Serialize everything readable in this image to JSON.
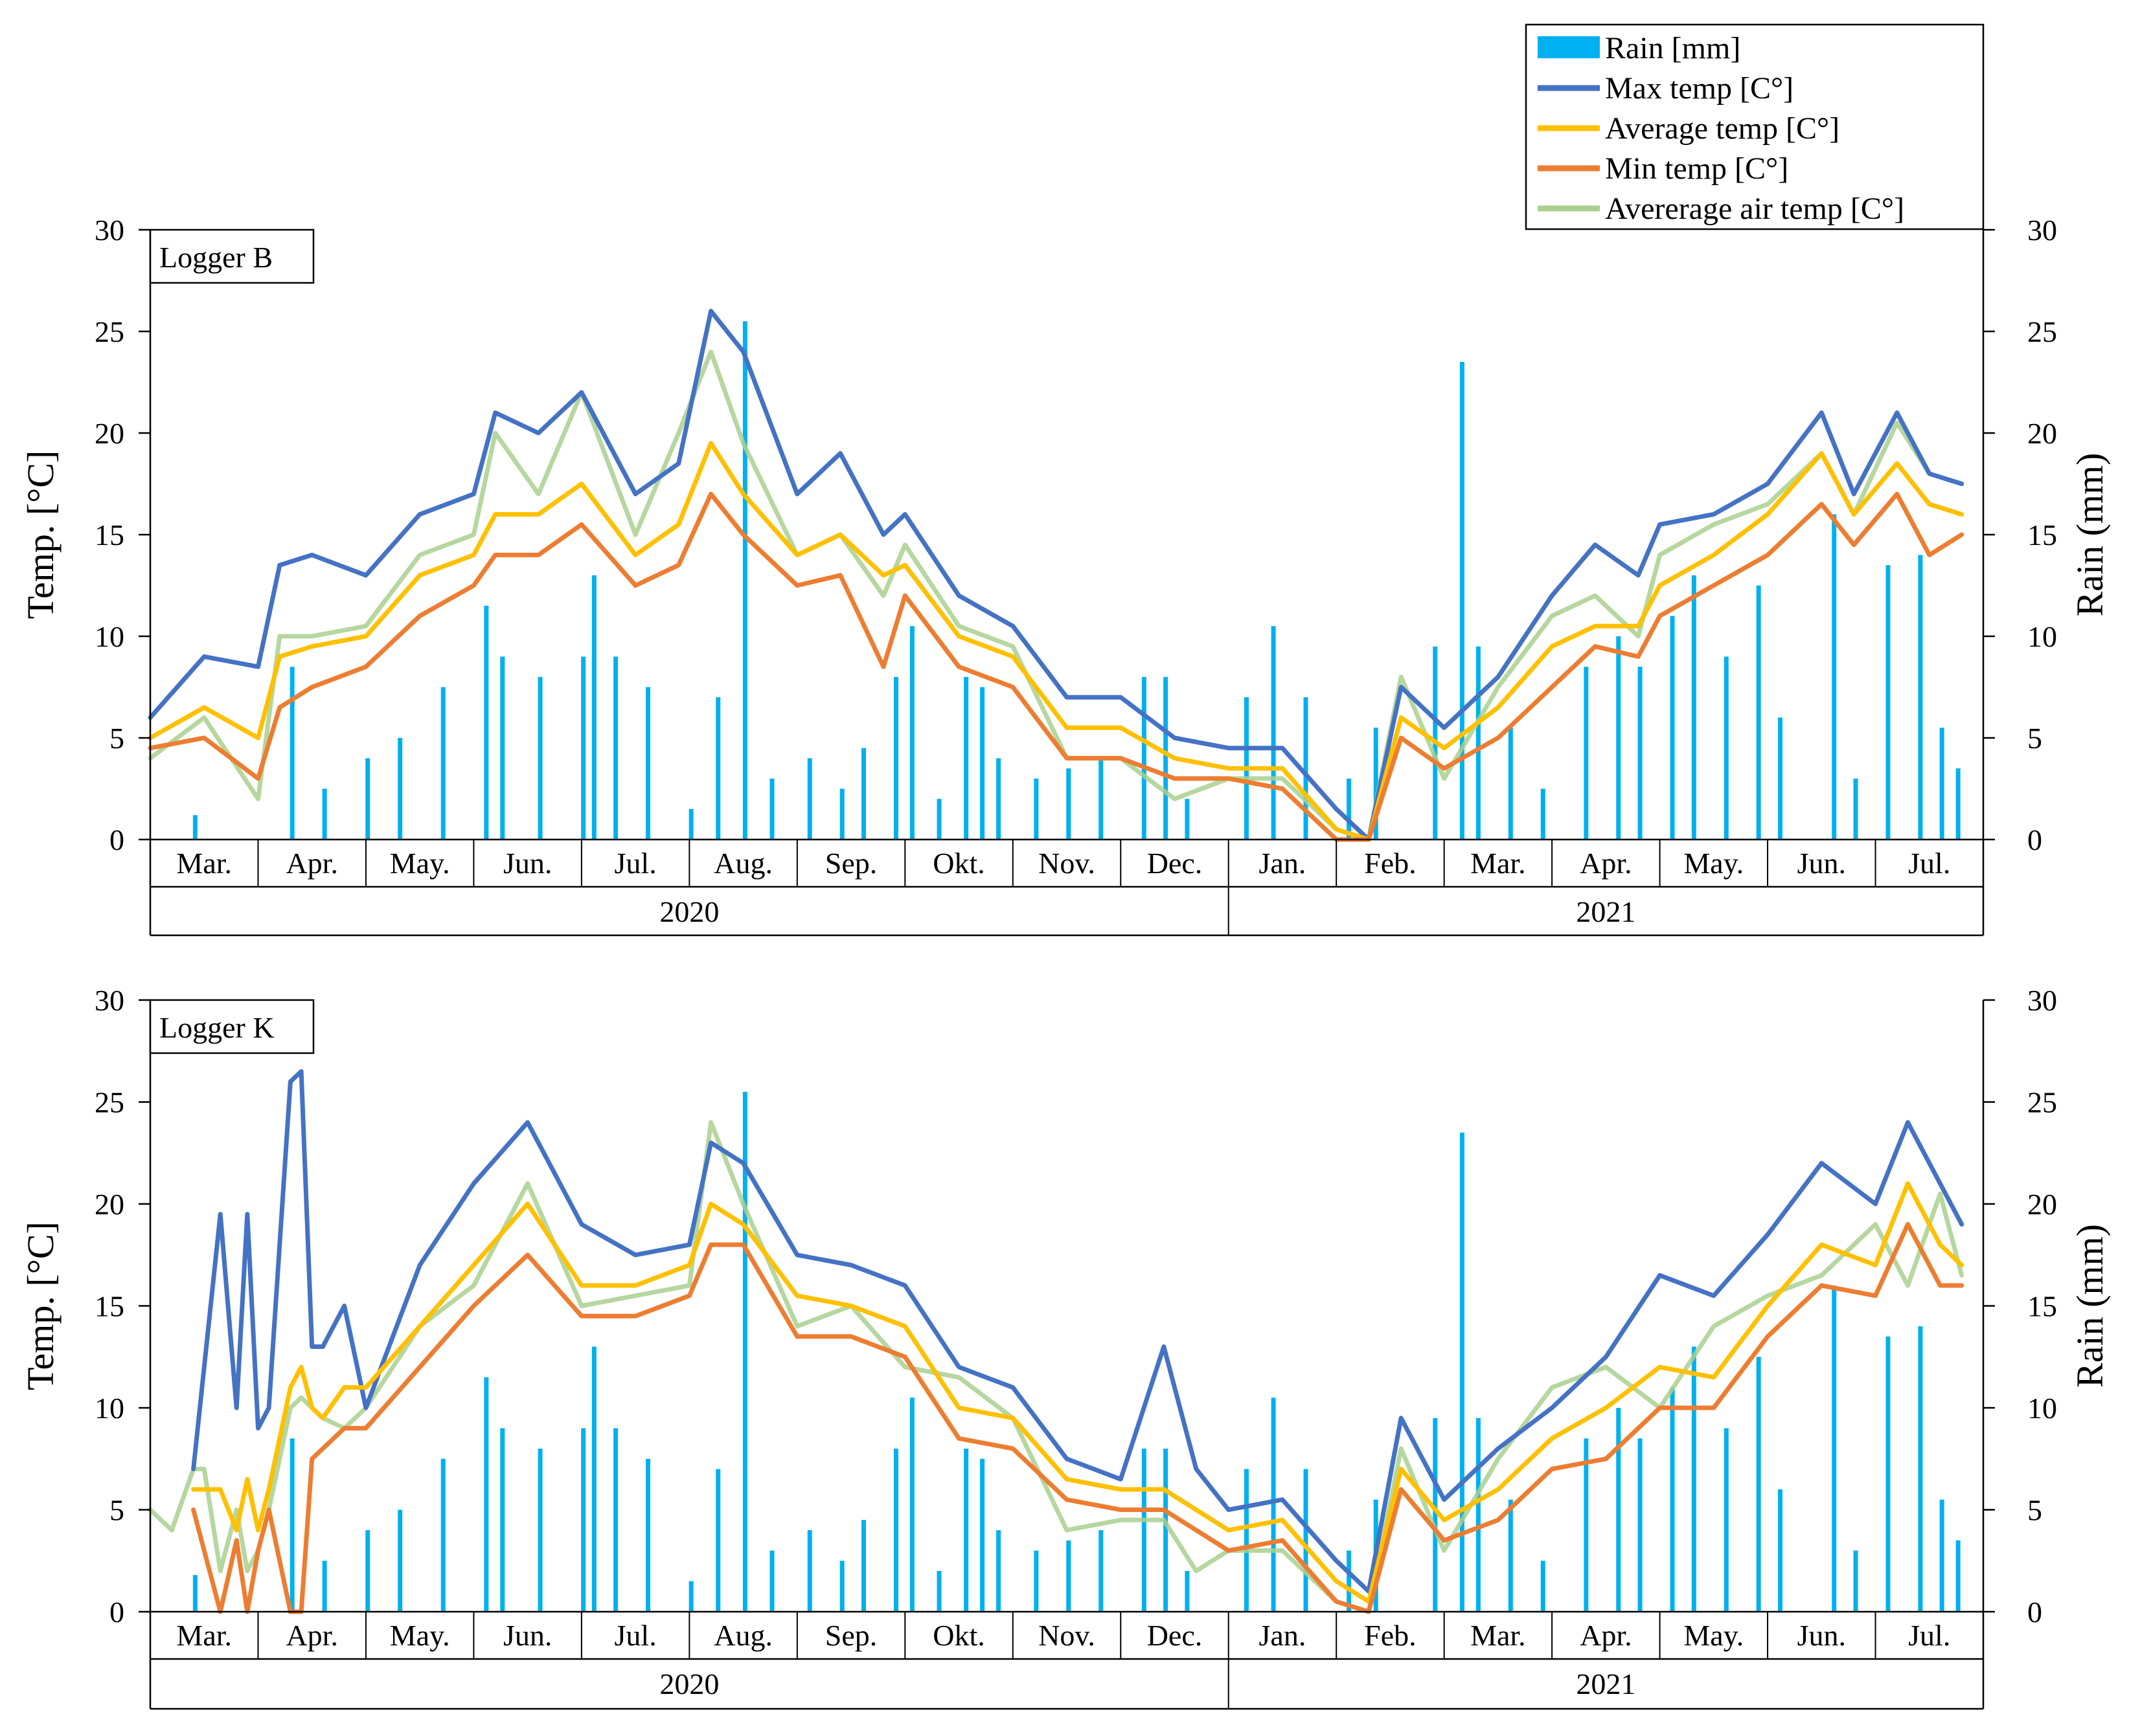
{
  "legend": {
    "items": [
      {
        "label": "Rain [mm]",
        "kind": "bar",
        "color": "#00B0F0"
      },
      {
        "label": "Max temp [C°]",
        "kind": "line",
        "color": "#4472C4"
      },
      {
        "label": "Average temp [C°]",
        "kind": "line",
        "color": "#FFC000"
      },
      {
        "label": "Min temp [C°]",
        "kind": "line",
        "color": "#ED7D31"
      },
      {
        "label": "Avererage air temp [C°]",
        "kind": "line",
        "color": "#A9D08E"
      }
    ]
  },
  "chart_data": [
    {
      "type": "line",
      "title": "Logger B",
      "ylabel": "Temp. [°C]",
      "y2label": "Rain (mm)",
      "ylim": [
        0,
        30
      ],
      "y2lim": [
        0,
        30
      ],
      "yticks": [
        0,
        5,
        10,
        15,
        20,
        25,
        30
      ],
      "months": [
        "Mar.",
        "Apr.",
        "May.",
        "Jun.",
        "Jul.",
        "Aug.",
        "Sep.",
        "Okt.",
        "Nov.",
        "Dec.",
        "Jan.",
        "Feb.",
        "Mar.",
        "Apr.",
        "May.",
        "Jun.",
        "Jul."
      ],
      "years": [
        {
          "label": "2020",
          "months": 10
        },
        {
          "label": "2021",
          "months": 7
        }
      ],
      "series": [
        {
          "name": "Max temp [C°]",
          "color": "#4472C4",
          "x": [
            0,
            0.5,
            1,
            1.2,
            1.5,
            2,
            2.5,
            3,
            3.2,
            3.6,
            4,
            4.5,
            4.9,
            5.2,
            5.5,
            6,
            6.4,
            6.8,
            7,
            7.5,
            8,
            8.5,
            9,
            9.5,
            10,
            10.5,
            11,
            11.3,
            11.6,
            12,
            12.5,
            13,
            13.4,
            13.8,
            14,
            14.5,
            15,
            15.5,
            15.8,
            16.2,
            16.5,
            16.8
          ],
          "values": [
            6,
            9,
            8.5,
            13.5,
            14,
            13,
            16,
            17,
            21,
            20,
            22,
            17,
            18.5,
            26,
            24,
            17,
            19,
            15,
            16,
            12,
            10.5,
            7,
            7,
            5,
            4.5,
            4.5,
            1.5,
            0,
            7.5,
            5.5,
            8,
            12,
            14.5,
            13,
            15.5,
            16,
            17.5,
            21,
            17,
            21,
            18,
            17.5
          ]
        },
        {
          "name": "Average temp [C°]",
          "color": "#FFC000",
          "x": [
            0,
            0.5,
            1,
            1.2,
            1.5,
            2,
            2.5,
            3,
            3.2,
            3.6,
            4,
            4.5,
            4.9,
            5.2,
            5.5,
            6,
            6.4,
            6.8,
            7,
            7.5,
            8,
            8.5,
            9,
            9.5,
            10,
            10.5,
            11,
            11.3,
            11.6,
            12,
            12.5,
            13,
            13.4,
            13.8,
            14,
            14.5,
            15,
            15.5,
            15.8,
            16.2,
            16.5,
            16.8
          ],
          "values": [
            5,
            6.5,
            5,
            9,
            9.5,
            10,
            13,
            14,
            16,
            16,
            17.5,
            14,
            15.5,
            19.5,
            17,
            14,
            15,
            13,
            13.5,
            10,
            9,
            5.5,
            5.5,
            4,
            3.5,
            3.5,
            0.5,
            0,
            6,
            4.5,
            6.5,
            9.5,
            10.5,
            10.5,
            12.5,
            14,
            16,
            19,
            16,
            18.5,
            16.5,
            16
          ]
        },
        {
          "name": "Min temp [C°]",
          "color": "#ED7D31",
          "x": [
            0,
            0.5,
            1,
            1.2,
            1.5,
            2,
            2.5,
            3,
            3.2,
            3.6,
            4,
            4.5,
            4.9,
            5.2,
            5.5,
            6,
            6.4,
            6.8,
            7,
            7.5,
            8,
            8.5,
            9,
            9.5,
            10,
            10.5,
            11,
            11.3,
            11.6,
            12,
            12.5,
            13,
            13.4,
            13.8,
            14,
            14.5,
            15,
            15.5,
            15.8,
            16.2,
            16.5,
            16.8
          ],
          "values": [
            4.5,
            5,
            3,
            6.5,
            7.5,
            8.5,
            11,
            12.5,
            14,
            14,
            15.5,
            12.5,
            13.5,
            17,
            15,
            12.5,
            13,
            8.5,
            12,
            8.5,
            7.5,
            4,
            4,
            3,
            3,
            2.5,
            0,
            0,
            5,
            3.5,
            5,
            7.5,
            9.5,
            9,
            11,
            12.5,
            14,
            16.5,
            14.5,
            17,
            14,
            15
          ]
        },
        {
          "name": "Avererage air temp [C°]",
          "color": "#A9D08E",
          "x": [
            0,
            0.5,
            1,
            1.2,
            1.5,
            2,
            2.5,
            3,
            3.2,
            3.6,
            4,
            4.5,
            4.9,
            5.2,
            5.5,
            6,
            6.4,
            6.8,
            7,
            7.5,
            8,
            8.5,
            9,
            9.5,
            10,
            10.5,
            11,
            11.3,
            11.6,
            12,
            12.5,
            13,
            13.4,
            13.8,
            14,
            14.5,
            15,
            15.5,
            15.8,
            16.2,
            16.5,
            16.8
          ],
          "values": [
            4,
            6,
            2,
            10,
            10,
            10.5,
            14,
            15,
            20,
            17,
            22,
            15,
            20,
            24,
            19.5,
            14,
            15,
            12,
            14.5,
            10.5,
            9.5,
            4,
            4,
            2,
            3,
            3,
            0.5,
            0,
            8,
            3,
            7.5,
            11,
            12,
            10,
            14,
            15.5,
            16.5,
            19,
            16,
            20.5,
            18,
            17.5
          ]
        }
      ],
      "rain": {
        "x": [
          0.4,
          1.3,
          1.6,
          2,
          2.3,
          2.7,
          3.1,
          3.25,
          3.6,
          4,
          4.1,
          4.3,
          4.6,
          5,
          5.25,
          5.5,
          5.75,
          6.1,
          6.4,
          6.6,
          6.9,
          7.05,
          7.3,
          7.55,
          7.7,
          7.85,
          8.2,
          8.5,
          8.8,
          9.2,
          9.4,
          9.6,
          10.15,
          10.4,
          10.7,
          11.1,
          11.35,
          11.9,
          12.15,
          12.3,
          12.6,
          12.9,
          13.3,
          13.6,
          13.8,
          14.1,
          14.3,
          14.6,
          14.9,
          15.1,
          15.6,
          15.8,
          16.1,
          16.4,
          16.6,
          16.75
        ],
        "values": [
          1.2,
          8.5,
          2.5,
          4,
          5,
          7.5,
          11.5,
          9,
          8,
          9,
          13,
          9,
          7.5,
          1.5,
          7,
          25.5,
          3,
          4,
          2.5,
          4.5,
          8,
          10.5,
          2,
          8,
          7.5,
          4,
          3,
          3.5,
          4,
          8,
          8,
          2,
          7,
          10.5,
          7,
          3,
          5.5,
          9.5,
          23.5,
          9.5,
          5.5,
          2.5,
          8.5,
          10,
          8.5,
          11,
          13,
          9,
          12.5,
          6,
          16,
          3,
          13.5,
          14,
          5.5,
          3.5
        ]
      }
    },
    {
      "type": "line",
      "title": "Logger K",
      "ylabel": "Temp. [°C]",
      "y2label": "Rain (mm)",
      "ylim": [
        0,
        30
      ],
      "y2lim": [
        0,
        30
      ],
      "yticks": [
        0,
        5,
        10,
        15,
        20,
        25,
        30
      ],
      "months": [
        "Mar.",
        "Apr.",
        "May.",
        "Jun.",
        "Jul.",
        "Aug.",
        "Sep.",
        "Okt.",
        "Nov.",
        "Dec.",
        "Jan.",
        "Feb.",
        "Mar.",
        "Apr.",
        "May.",
        "Jun.",
        "Jul."
      ],
      "years": [
        {
          "label": "2020",
          "months": 10
        },
        {
          "label": "2021",
          "months": 7
        }
      ],
      "series": [
        {
          "name": "Max temp [C°]",
          "color": "#4472C4",
          "x": [
            0.4,
            0.65,
            0.8,
            0.9,
            1,
            1.1,
            1.3,
            1.4,
            1.5,
            1.6,
            1.8,
            2,
            2.5,
            3,
            3.5,
            4,
            4.5,
            5,
            5.2,
            5.5,
            6,
            6.5,
            7,
            7.5,
            8,
            8.5,
            9,
            9.4,
            9.7,
            10,
            10.5,
            11,
            11.3,
            11.6,
            12,
            12.5,
            13,
            13.5,
            14,
            14.5,
            15,
            15.5,
            16,
            16.3,
            16.6,
            16.8
          ],
          "values": [
            7,
            19.5,
            10,
            19.5,
            9,
            10,
            26,
            26.5,
            13,
            13,
            15,
            10,
            17,
            21,
            24,
            19,
            17.5,
            18,
            23,
            22,
            17.5,
            17,
            16,
            12,
            11,
            7.5,
            6.5,
            13,
            7,
            5,
            5.5,
            2.5,
            1,
            9.5,
            5.5,
            8,
            10,
            12.5,
            16.5,
            15.5,
            18.5,
            22,
            20,
            24,
            21,
            19
          ]
        },
        {
          "name": "Average temp [C°]",
          "color": "#FFC000",
          "x": [
            0.4,
            0.65,
            0.8,
            0.9,
            1,
            1.1,
            1.3,
            1.4,
            1.5,
            1.6,
            1.8,
            2,
            2.5,
            3,
            3.5,
            4,
            4.5,
            5,
            5.2,
            5.5,
            6,
            6.5,
            7,
            7.5,
            8,
            8.5,
            9,
            9.4,
            9.7,
            10,
            10.5,
            11,
            11.3,
            11.6,
            12,
            12.5,
            13,
            13.5,
            14,
            14.5,
            15,
            15.5,
            16,
            16.3,
            16.6,
            16.8
          ],
          "values": [
            6,
            6,
            4,
            6.5,
            4,
            6,
            11,
            12,
            10,
            9.5,
            11,
            11,
            14,
            17,
            20,
            16,
            16,
            17,
            20,
            19,
            15.5,
            15,
            14,
            10,
            9.5,
            6.5,
            6,
            6,
            5,
            4,
            4.5,
            1.5,
            0.5,
            7,
            4.5,
            6,
            8.5,
            10,
            12,
            11.5,
            15,
            18,
            17,
            21,
            18,
            17
          ]
        },
        {
          "name": "Min temp [C°]",
          "color": "#ED7D31",
          "x": [
            0.4,
            0.65,
            0.8,
            0.9,
            1,
            1.1,
            1.3,
            1.4,
            1.5,
            1.6,
            1.8,
            2,
            2.5,
            3,
            3.5,
            4,
            4.5,
            5,
            5.2,
            5.5,
            6,
            6.5,
            7,
            7.5,
            8,
            8.5,
            9,
            9.4,
            9.7,
            10,
            10.5,
            11,
            11.3,
            11.6,
            12,
            12.5,
            13,
            13.5,
            14,
            14.5,
            15,
            15.5,
            16,
            16.3,
            16.6,
            16.8
          ],
          "values": [
            5,
            0,
            3.5,
            0,
            3,
            5,
            0,
            0,
            7.5,
            8,
            9,
            9,
            12,
            15,
            17.5,
            14.5,
            14.5,
            15.5,
            18,
            18,
            13.5,
            13.5,
            12.5,
            8.5,
            8,
            5.5,
            5,
            5,
            4,
            3,
            3.5,
            0.5,
            0,
            6,
            3.5,
            4.5,
            7,
            7.5,
            10,
            10,
            13.5,
            16,
            15.5,
            19,
            16,
            16
          ]
        },
        {
          "name": "Avererage air temp [C°]",
          "color": "#A9D08E",
          "x": [
            0,
            0.2,
            0.4,
            0.5,
            0.65,
            0.8,
            0.9,
            1,
            1.1,
            1.3,
            1.4,
            1.5,
            1.6,
            1.8,
            2,
            2.5,
            3,
            3.5,
            4,
            4.5,
            5,
            5.2,
            5.5,
            6,
            6.5,
            7,
            7.5,
            8,
            8.5,
            9,
            9.4,
            9.7,
            10,
            10.5,
            11,
            11.3,
            11.6,
            12,
            12.5,
            13,
            13.5,
            14,
            14.5,
            15,
            15.5,
            16,
            16.3,
            16.6,
            16.8
          ],
          "values": [
            5,
            4,
            7,
            7,
            2,
            5,
            2,
            3,
            5,
            10,
            10.5,
            10,
            9.5,
            9,
            10,
            14,
            16,
            21,
            15,
            15.5,
            16,
            24,
            20,
            14,
            15,
            12,
            11.5,
            9.5,
            4,
            4.5,
            4.5,
            2,
            3,
            3,
            0.5,
            0,
            8,
            3,
            7.5,
            11,
            12,
            10,
            14,
            15.5,
            16.5,
            19,
            16,
            20.5,
            16.5
          ]
        }
      ],
      "rain": {
        "x": [
          0.4,
          1.3,
          1.6,
          2,
          2.3,
          2.7,
          3.1,
          3.25,
          3.6,
          4,
          4.1,
          4.3,
          4.6,
          5,
          5.25,
          5.5,
          5.75,
          6.1,
          6.4,
          6.6,
          6.9,
          7.05,
          7.3,
          7.55,
          7.7,
          7.85,
          8.2,
          8.5,
          8.8,
          9.2,
          9.4,
          9.6,
          10.15,
          10.4,
          10.7,
          11.1,
          11.35,
          11.9,
          12.15,
          12.3,
          12.6,
          12.9,
          13.3,
          13.6,
          13.8,
          14.1,
          14.3,
          14.6,
          14.9,
          15.1,
          15.6,
          15.8,
          16.1,
          16.4,
          16.6,
          16.75
        ],
        "values": [
          1.8,
          8.5,
          2.5,
          4,
          5,
          7.5,
          11.5,
          9,
          8,
          9,
          13,
          9,
          7.5,
          1.5,
          7,
          25.5,
          3,
          4,
          2.5,
          4.5,
          8,
          10.5,
          2,
          8,
          7.5,
          4,
          3,
          3.5,
          4,
          8,
          8,
          2,
          7,
          10.5,
          7,
          3,
          5.5,
          9.5,
          23.5,
          9.5,
          5.5,
          2.5,
          8.5,
          10,
          8.5,
          11,
          13,
          9,
          12.5,
          6,
          16,
          3,
          13.5,
          14,
          5.5,
          3.5
        ]
      }
    }
  ]
}
